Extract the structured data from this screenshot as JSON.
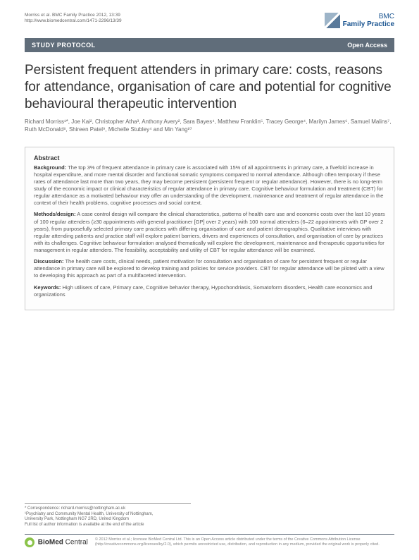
{
  "meta": {
    "citation": "Morriss et al. BMC Family Practice 2012, 13:39",
    "url": "http://www.biomedcentral.com/1471-2296/13/39",
    "journal_prefix": "BMC",
    "journal_name": "Family Practice"
  },
  "banner": {
    "left": "STUDY PROTOCOL",
    "right": "Open Access"
  },
  "title": "Persistent frequent attenders in primary care: costs, reasons for attendance, organisation of care and potential for cognitive behavioural therapeutic intervention",
  "authors": "Richard Morriss¹*, Joe Kai², Christopher Atha³, Anthony Avery², Sara Bayes⁴, Matthew Franklin⁵, Tracey George⁴, Marilyn James⁶, Samuel Malins⁷, Ruth McDonald⁸, Shireen Patel⁹, Michelle Stubley⁴ and Min Yang¹⁰",
  "abstract": {
    "heading": "Abstract",
    "background_label": "Background:",
    "background": "The top 3% of frequent attendance in primary care is associated with 15% of all appointments in primary care, a fivefold increase in hospital expenditure, and more mental disorder and functional somatic symptoms compared to normal attendance. Although often temporary if these rates of attendance last more than two years, they may become persistent (persistent frequent or regular attendance). However, there is no long-term study of the economic impact or clinical characteristics of regular attendance in primary care. Cognitive behaviour formulation and treatment (CBT) for regular attendance as a motivated behaviour may offer an understanding of the development, maintenance and treatment of regular attendance in the context of their health problems, cognitive processes and social context.",
    "methods_label": "Methods/design:",
    "methods": "A case control design will compare the clinical characteristics, patterns of health care use and economic costs over the last 10 years of 100 regular attenders (≥30 appointments with general practitioner [GP] over 2 years) with 100 normal attenders (6–22 appointments with GP over 2 years), from purposefully selected primary care practices with differing organisation of care and patient demographics. Qualitative interviews with regular attending patients and practice staff will explore patient barriers, drivers and experiences of consultation, and organisation of care by practices with its challenges. Cognitive behaviour formulation analysed thematically will explore the development, maintenance and therapeutic opportunities for management in regular attenders. The feasibility, acceptability and utility of CBT for regular attendance will be examined.",
    "discussion_label": "Discussion:",
    "discussion": "The health care costs, clinical needs, patient motivation for consultation and organisation of care for persistent frequent or regular attendance in primary care will be explored to develop training and policies for service providers. CBT for regular attendance will be piloted with a view to developing this approach as part of a multifaceted intervention.",
    "keywords_label": "Keywords:",
    "keywords": "High utilisers of care, Primary care, Cognitive behavior therapy, Hypochondriasis, Somatoform disorders, Health care economics and organizations"
  },
  "correspondence": {
    "line1": "* Correspondence: richard.morriss@nottingham.ac.uk",
    "line2": "¹Psychiatry and Community Mental Health, University of Nottingham,",
    "line3": "University Park, Nottingham NG7 2RD, United Kingdom",
    "line4": "Full list of author information is available at the end of the article"
  },
  "footer": {
    "bmc_bio": "Bio",
    "bmc_med": "Med",
    "bmc_central": " Central",
    "license": "© 2012 Morriss et al.; licensee BioMed Central Ltd. This is an Open Access article distributed under the terms of the Creative Commons Attribution License (http://creativecommons.org/licenses/by/2.0), which permits unrestricted use, distribution, and reproduction in any medium, provided the original work is properly cited."
  },
  "colors": {
    "banner_bg": "#606d7a",
    "text_body": "#555555",
    "text_heading": "#333333",
    "border": "#cccccc",
    "logo_blue": "#1a5490"
  }
}
